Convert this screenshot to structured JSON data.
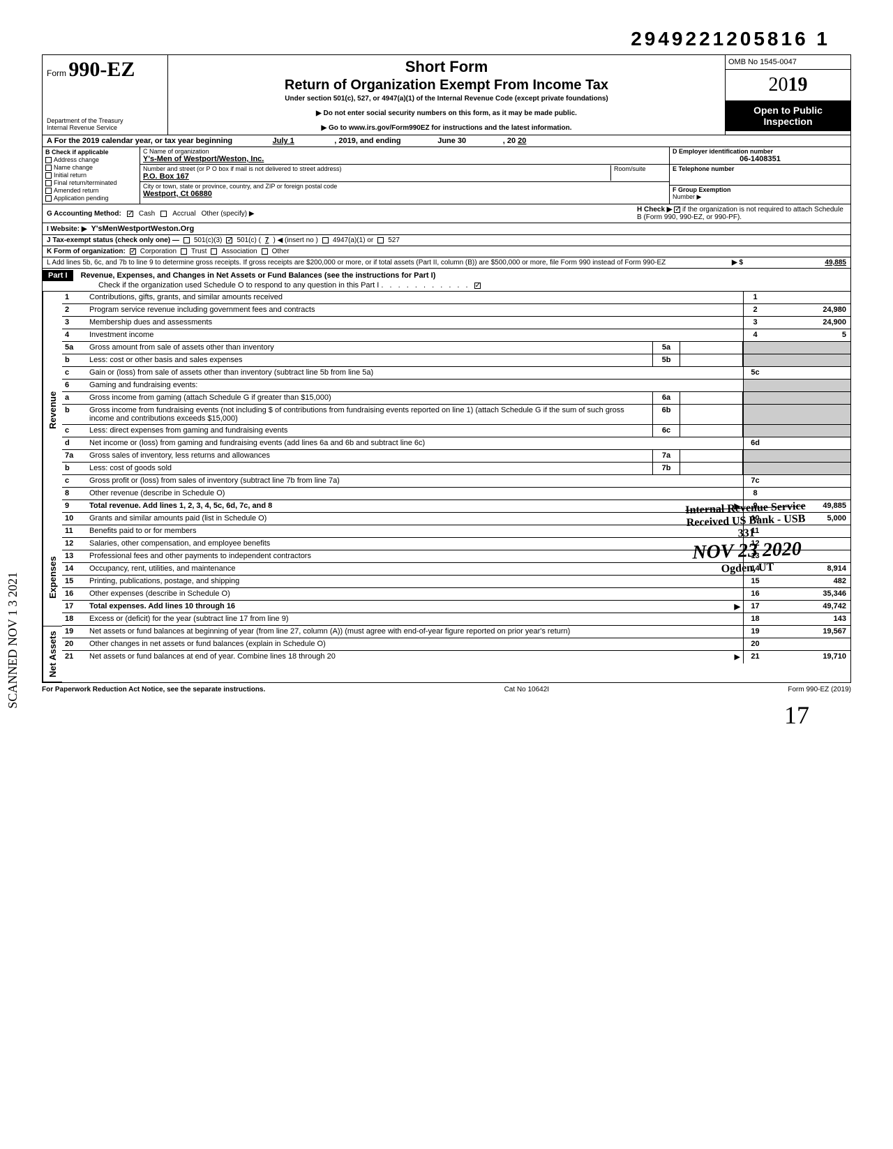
{
  "doc_number": "2949221205816 1",
  "header": {
    "form_prefix": "Form",
    "form_number": "990-EZ",
    "short_form": "Short Form",
    "title": "Return of Organization Exempt From Income Tax",
    "subtitle": "Under section 501(c), 527, or 4947(a)(1) of the Internal Revenue Code (except private foundations)",
    "note1": "Do not enter social security numbers on this form, as it may be made public.",
    "note2": "Go to www.irs.gov/Form990EZ for instructions and the latest information.",
    "dept1": "Department of the Treasury",
    "dept2": "Internal Revenue Service",
    "omb": "OMB No  1545-0047",
    "year_light": "20",
    "year_bold": "19",
    "open1": "Open to Public",
    "open2": "Inspection"
  },
  "section_a": {
    "label": "A For the 2019 calendar year, or tax year beginning",
    "begin": "July 1",
    "mid": ", 2019, and ending",
    "end": "June 30",
    "yr_suffix": ", 20",
    "yr_end": "20"
  },
  "section_b": {
    "label": "B  Check if applicable",
    "items": [
      "Address change",
      "Name change",
      "Initial return",
      "Final return/terminated",
      "Amended return",
      "Application pending"
    ]
  },
  "section_c": {
    "label_name": "C  Name of organization",
    "org_name": "Y's-Men of Westport/Weston, Inc.",
    "label_addr": "Number and street (or P O  box if mail is not delivered to street address)",
    "room": "Room/suite",
    "addr": "P.O. Box 167",
    "label_city": "City or town, state or province, country, and ZIP or foreign postal code",
    "city": "Westport, Ct 06880"
  },
  "section_d": {
    "label": "D Employer identification number",
    "val": "06-1408351"
  },
  "section_e": {
    "label": "E  Telephone number",
    "val": ""
  },
  "section_f": {
    "label": "F  Group Exemption",
    "label2": "Number ▶",
    "val": ""
  },
  "section_g": {
    "label": "G  Accounting Method:",
    "cash": "Cash",
    "accrual": "Accrual",
    "other": "Other (specify) ▶"
  },
  "section_h": {
    "label": "H  Check ▶",
    "text": "if the organization is not required to attach Schedule B (Form 990, 990-EZ, or 990-PF)."
  },
  "section_i": {
    "label": "I   Website: ▶",
    "val": "Y'sMenWestportWeston.Org"
  },
  "section_j": {
    "label": "J  Tax-exempt status (check only one) —",
    "opt1": "501(c)(3)",
    "opt2_pre": "501(c) (",
    "opt2_num": "7",
    "opt2_post": ") ◀ (insert no )",
    "opt3": "4947(a)(1) or",
    "opt4": "527"
  },
  "section_k": {
    "label": "K  Form of organization:",
    "corp": "Corporation",
    "trust": "Trust",
    "assoc": "Association",
    "other": "Other"
  },
  "section_l": {
    "text": "L  Add lines 5b, 6c, and 7b to line 9 to determine gross receipts. If gross receipts are $200,000 or more, or if total assets (Part II, column (B)) are $500,000 or more, file Form 990 instead of Form 990-EZ",
    "arrow": "▶  $",
    "val": "49,885"
  },
  "part1": {
    "hdr": "Part I",
    "title": "Revenue, Expenses, and Changes in Net Assets or Fund Balances (see the instructions for Part I)",
    "check_line": "Check if the organization used Schedule O to respond to any question in this Part I",
    "checked": true
  },
  "sections": {
    "revenue_label": "Revenue",
    "expenses_label": "Expenses",
    "netassets_label": "Net Assets"
  },
  "lines": [
    {
      "n": "1",
      "d": "Contributions, gifts, grants, and similar amounts received",
      "rn": "1",
      "rv": ""
    },
    {
      "n": "2",
      "d": "Program service revenue including government fees and contracts",
      "rn": "2",
      "rv": "24,980"
    },
    {
      "n": "3",
      "d": "Membership dues and assessments",
      "rn": "3",
      "rv": "24,900"
    },
    {
      "n": "4",
      "d": "Investment income",
      "rn": "4",
      "rv": "5"
    },
    {
      "n": "5a",
      "d": "Gross amount from sale of assets other than inventory",
      "mb": "5a",
      "shade": true
    },
    {
      "n": "b",
      "d": "Less: cost or other basis and sales expenses",
      "mb": "5b",
      "shade": true
    },
    {
      "n": "c",
      "d": "Gain or (loss) from sale of assets other than inventory (subtract line 5b from line 5a)",
      "rn": "5c",
      "rv": ""
    },
    {
      "n": "6",
      "d": "Gaming and fundraising events:",
      "shade": true
    },
    {
      "n": "a",
      "d": "Gross income from gaming (attach Schedule G if greater than $15,000)",
      "mb": "6a",
      "shade": true
    },
    {
      "n": "b",
      "d": "Gross income from fundraising events (not including  $                 of contributions from fundraising events reported on line 1) (attach Schedule G if the sum of such gross income and contributions exceeds $15,000)",
      "mb": "6b",
      "shade": true
    },
    {
      "n": "c",
      "d": "Less: direct expenses from gaming and fundraising events",
      "mb": "6c",
      "shade": true
    },
    {
      "n": "d",
      "d": "Net income or (loss) from gaming and fundraising events (add lines 6a and 6b and subtract line 6c)",
      "rn": "6d",
      "rv": ""
    },
    {
      "n": "7a",
      "d": "Gross sales of inventory, less returns and allowances",
      "mb": "7a",
      "shade": true
    },
    {
      "n": "b",
      "d": "Less: cost of goods sold",
      "mb": "7b",
      "shade": true
    },
    {
      "n": "c",
      "d": "Gross profit or (loss) from sales of inventory (subtract line 7b from line 7a)",
      "rn": "7c",
      "rv": ""
    },
    {
      "n": "8",
      "d": "Other revenue (describe in Schedule O)",
      "rn": "8",
      "rv": ""
    },
    {
      "n": "9",
      "d": "Total revenue. Add lines 1, 2, 3, 4, 5c, 6d, 7c, and 8",
      "rn": "9",
      "rv": "49,885",
      "bold": true,
      "arrow": true
    }
  ],
  "exp_lines": [
    {
      "n": "10",
      "d": "Grants and similar amounts paid (list in Schedule O)",
      "rn": "10",
      "rv": "5,000"
    },
    {
      "n": "11",
      "d": "Benefits paid to or for members",
      "rn": "11",
      "rv": ""
    },
    {
      "n": "12",
      "d": "Salaries, other compensation, and employee benefits",
      "rn": "12",
      "rv": ""
    },
    {
      "n": "13",
      "d": "Professional fees and other payments to independent contractors",
      "rn": "13",
      "rv": ""
    },
    {
      "n": "14",
      "d": "Occupancy, rent, utilities, and maintenance",
      "rn": "14",
      "rv": "8,914"
    },
    {
      "n": "15",
      "d": "Printing, publications, postage, and shipping",
      "rn": "15",
      "rv": "482"
    },
    {
      "n": "16",
      "d": "Other expenses (describe in Schedule O)",
      "rn": "16",
      "rv": "35,346"
    },
    {
      "n": "17",
      "d": "Total expenses. Add lines 10 through 16",
      "rn": "17",
      "rv": "49,742",
      "bold": true,
      "arrow": true
    }
  ],
  "net_lines": [
    {
      "n": "18",
      "d": "Excess or (deficit) for the year (subtract line 17 from line 9)",
      "rn": "18",
      "rv": "143"
    },
    {
      "n": "19",
      "d": "Net assets or fund balances at beginning of year (from line 27, column (A)) (must agree with end-of-year figure reported on prior year's return)",
      "rn": "19",
      "rv": "19,567"
    },
    {
      "n": "20",
      "d": "Other changes in net assets or fund balances (explain in Schedule O)",
      "rn": "20",
      "rv": ""
    },
    {
      "n": "21",
      "d": "Net assets or fund balances at end of year. Combine lines 18 through 20",
      "rn": "21",
      "rv": "19,710",
      "arrow": true
    }
  ],
  "footer": {
    "left": "For Paperwork Reduction Act Notice, see the separate instructions.",
    "mid": "Cat  No  10642I",
    "right": "Form 990-EZ (2019)"
  },
  "stamp": {
    "l1": "Internal Revenue Service",
    "l2": "Received US Bank - USB",
    "l3": "331",
    "date": "NOV 23 2020",
    "l4": "Ogden, UT"
  },
  "scanned": "SCANNED NOV 1 3 2021",
  "pagenum": "17"
}
